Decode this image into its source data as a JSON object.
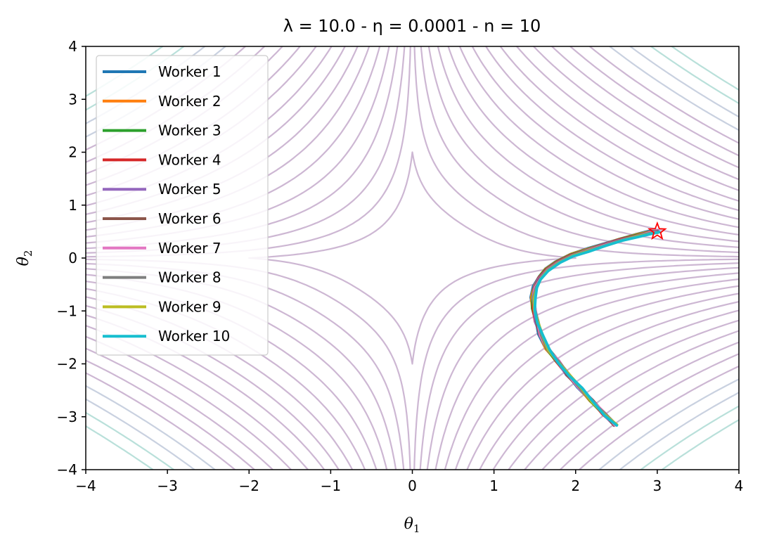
{
  "chart_data": {
    "type": "line",
    "title": "λ = 10.0 - η = 0.0001 - n = 10",
    "xlabel": "θ1",
    "ylabel": "θ2",
    "xlim": [
      -4,
      4
    ],
    "ylim": [
      -4,
      4
    ],
    "x_ticks": [
      "−4",
      "−3",
      "−2",
      "−1",
      "0",
      "1",
      "2",
      "3",
      "4"
    ],
    "y_ticks": [
      "−4",
      "−3",
      "−2",
      "−1",
      "0",
      "1",
      "2",
      "3",
      "4"
    ],
    "grid": false,
    "legend_position": "upper-left",
    "target_marker": {
      "symbol": "star",
      "x": 3.0,
      "y": 0.5,
      "color": "#ff0000"
    },
    "background": "contour plot of the loss surface",
    "series": [
      {
        "name": "Worker 1",
        "color": "#1f77b4"
      },
      {
        "name": "Worker 2",
        "color": "#ff7f0e"
      },
      {
        "name": "Worker 3",
        "color": "#2ca02c"
      },
      {
        "name": "Worker 4",
        "color": "#d62728"
      },
      {
        "name": "Worker 5",
        "color": "#9467bd"
      },
      {
        "name": "Worker 6",
        "color": "#8c564b"
      },
      {
        "name": "Worker 7",
        "color": "#e377c2"
      },
      {
        "name": "Worker 8",
        "color": "#7f7f7f"
      },
      {
        "name": "Worker 9",
        "color": "#bcbd22"
      },
      {
        "name": "Worker 10",
        "color": "#17becf"
      }
    ],
    "trajectory": [
      [
        2.48,
        -3.15
      ],
      [
        2.35,
        -2.95
      ],
      [
        2.2,
        -2.7
      ],
      [
        2.05,
        -2.45
      ],
      [
        1.9,
        -2.2
      ],
      [
        1.78,
        -1.95
      ],
      [
        1.66,
        -1.72
      ],
      [
        1.57,
        -1.45
      ],
      [
        1.52,
        -1.2
      ],
      [
        1.49,
        -0.95
      ],
      [
        1.48,
        -0.75
      ],
      [
        1.5,
        -0.55
      ],
      [
        1.56,
        -0.38
      ],
      [
        1.65,
        -0.22
      ],
      [
        1.78,
        -0.08
      ],
      [
        1.95,
        0.05
      ],
      [
        2.15,
        0.15
      ],
      [
        2.35,
        0.25
      ],
      [
        2.55,
        0.34
      ],
      [
        2.75,
        0.42
      ],
      [
        2.9,
        0.48
      ],
      [
        3.0,
        0.5
      ]
    ]
  }
}
